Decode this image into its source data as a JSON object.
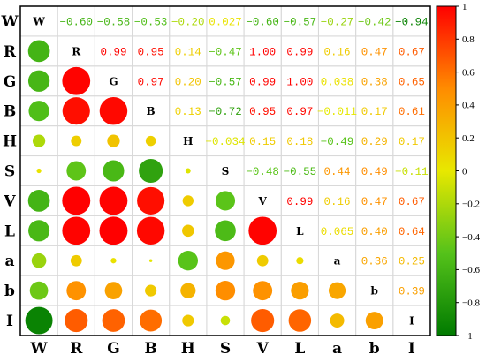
{
  "chart_data": {
    "type": "heatmap",
    "subtype": "correlation-matrix",
    "variables": [
      "W",
      "R",
      "G",
      "B",
      "H",
      "S",
      "V",
      "L",
      "a",
      "b",
      "I"
    ],
    "upper_display": "numbers",
    "lower_display": "circles",
    "matrix": [
      [
        1,
        -0.6,
        -0.58,
        -0.53,
        -0.2,
        0.027,
        -0.6,
        -0.57,
        -0.27,
        -0.42,
        -0.94
      ],
      [
        -0.6,
        1,
        0.99,
        0.95,
        0.14,
        -0.47,
        1.0,
        0.99,
        0.16,
        0.47,
        0.67
      ],
      [
        -0.58,
        0.99,
        1,
        0.97,
        0.2,
        -0.57,
        0.99,
        1.0,
        0.038,
        0.38,
        0.65
      ],
      [
        -0.53,
        0.95,
        0.97,
        1,
        0.13,
        -0.72,
        0.95,
        0.97,
        -0.011,
        0.17,
        0.61
      ],
      [
        -0.2,
        0.14,
        0.2,
        0.13,
        1,
        -0.034,
        0.15,
        0.18,
        -0.49,
        0.29,
        0.17
      ],
      [
        0.027,
        -0.47,
        -0.57,
        -0.72,
        -0.034,
        1,
        -0.48,
        -0.55,
        0.44,
        0.49,
        -0.11
      ],
      [
        -0.6,
        1.0,
        0.99,
        0.95,
        0.15,
        -0.48,
        1,
        0.99,
        0.16,
        0.47,
        0.67
      ],
      [
        -0.57,
        0.99,
        1.0,
        0.97,
        0.18,
        -0.55,
        0.99,
        1,
        0.065,
        0.4,
        0.64
      ],
      [
        -0.27,
        0.16,
        0.038,
        -0.011,
        -0.49,
        0.44,
        0.16,
        0.065,
        1,
        0.36,
        0.25
      ],
      [
        -0.42,
        0.47,
        0.38,
        0.17,
        0.29,
        0.49,
        0.47,
        0.4,
        0.36,
        1,
        0.39
      ],
      [
        -0.94,
        0.67,
        0.65,
        0.61,
        0.17,
        -0.11,
        0.67,
        0.64,
        0.25,
        0.39,
        1
      ]
    ],
    "upper_labels": [
      [
        null,
        "-0.60",
        "-0.58",
        "-0.53",
        "-0.20",
        "0.027",
        "-0.60",
        "-0.57",
        "-0.27",
        "-0.42",
        "-0.94"
      ],
      [
        null,
        null,
        "0.99",
        "0.95",
        "0.14",
        "-0.47",
        "1.00",
        "0.99",
        "0.16",
        "0.47",
        "0.67"
      ],
      [
        null,
        null,
        null,
        "0.97",
        "0.20",
        "-0.57",
        "0.99",
        "1.00",
        "0.038",
        "0.38",
        "0.65"
      ],
      [
        null,
        null,
        null,
        null,
        "0.13",
        "-0.72",
        "0.95",
        "0.97",
        "-0.011",
        "0.17",
        "0.61"
      ],
      [
        null,
        null,
        null,
        null,
        null,
        "-0.034",
        "0.15",
        "0.18",
        "-0.49",
        "0.29",
        "0.17"
      ],
      [
        null,
        null,
        null,
        null,
        null,
        null,
        "-0.48",
        "-0.55",
        "0.44",
        "0.49",
        "-0.11"
      ],
      [
        null,
        null,
        null,
        null,
        null,
        null,
        null,
        "0.99",
        "0.16",
        "0.47",
        "0.67"
      ],
      [
        null,
        null,
        null,
        null,
        null,
        null,
        null,
        null,
        "0.065",
        "0.40",
        "0.64"
      ],
      [
        null,
        null,
        null,
        null,
        null,
        null,
        null,
        null,
        null,
        "0.36",
        "0.25"
      ],
      [
        null,
        null,
        null,
        null,
        null,
        null,
        null,
        null,
        null,
        null,
        "0.39"
      ],
      [
        null,
        null,
        null,
        null,
        null,
        null,
        null,
        null,
        null,
        null,
        null
      ]
    ],
    "colorbar": {
      "range": [
        -1,
        1
      ],
      "ticks": [
        1,
        0.8,
        0.6,
        0.4,
        0.2,
        0,
        -0.2,
        -0.4,
        -0.6,
        -0.8,
        -1
      ],
      "tick_labels": [
        "1",
        "0.8",
        "0.6",
        "0.4",
        "0.2",
        "0",
        "−0.2",
        "−0.4",
        "−0.6",
        "−0.8",
        "−1"
      ],
      "colors": [
        "#ff0000",
        "#ff8c00",
        "#e8e800",
        "#55c21a",
        "#007a00"
      ],
      "position": "right"
    },
    "title": "",
    "xlabel": "",
    "ylabel": ""
  }
}
